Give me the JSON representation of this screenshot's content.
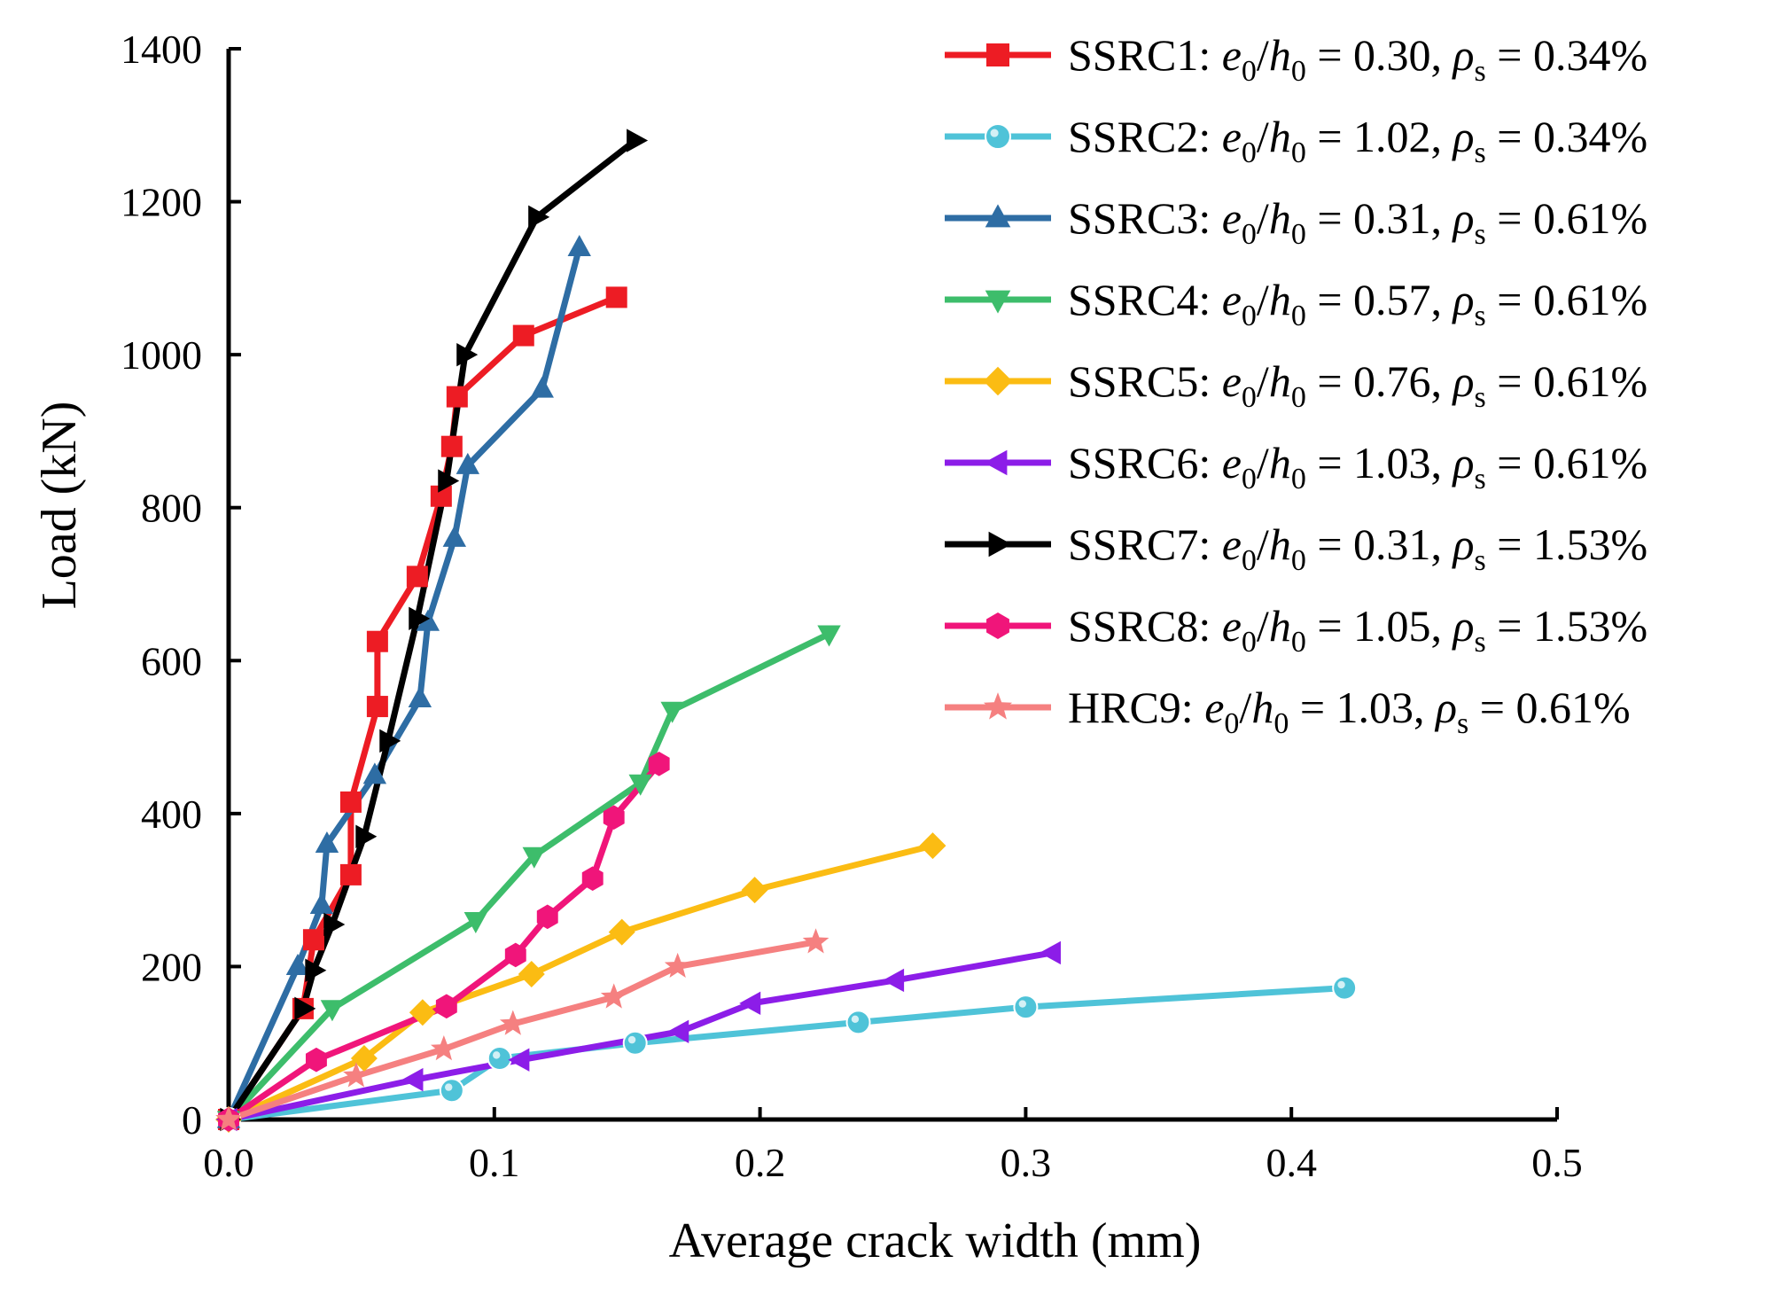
{
  "chart_data": {
    "type": "line",
    "xlabel": "Average crack width (mm)",
    "ylabel": "Load (kN)",
    "xlim": [
      0,
      0.5
    ],
    "ylim": [
      0,
      1400
    ],
    "xticks": [
      0,
      0.1,
      0.2,
      0.3,
      0.4,
      0.5
    ],
    "xtick_labels": [
      "0.0",
      "0.1",
      "0.2",
      "0.3",
      "0.4",
      "0.5"
    ],
    "yticks": [
      0,
      200,
      400,
      600,
      800,
      1000,
      1200,
      1400
    ],
    "ytick_labels": [
      "0",
      "200",
      "400",
      "600",
      "800",
      "1000",
      "1200",
      "1400"
    ],
    "legend_position": "top-right",
    "series": [
      {
        "name": "SSRC1",
        "e0_h0": "0.30",
        "rho_s": "0.34%",
        "color": "#ed1c24",
        "marker": "square",
        "points": [
          [
            0,
            0
          ],
          [
            0.028,
            145
          ],
          [
            0.032,
            235
          ],
          [
            0.046,
            320
          ],
          [
            0.046,
            415
          ],
          [
            0.056,
            540
          ],
          [
            0.056,
            625
          ],
          [
            0.071,
            710
          ],
          [
            0.08,
            815
          ],
          [
            0.084,
            880
          ],
          [
            0.086,
            945
          ],
          [
            0.111,
            1025
          ],
          [
            0.146,
            1075
          ]
        ]
      },
      {
        "name": "SSRC2",
        "e0_h0": "1.02",
        "rho_s": "0.34%",
        "color": "#4fc3d8",
        "marker": "circle",
        "points": [
          [
            0,
            0
          ],
          [
            0.084,
            38
          ],
          [
            0.102,
            80
          ],
          [
            0.153,
            100
          ],
          [
            0.237,
            127
          ],
          [
            0.3,
            147
          ],
          [
            0.42,
            172
          ]
        ]
      },
      {
        "name": "SSRC3",
        "e0_h0": "0.31",
        "rho_s": "0.61%",
        "color": "#2e6da4",
        "marker": "triangle-up",
        "points": [
          [
            0,
            0
          ],
          [
            0.026,
            200
          ],
          [
            0.035,
            280
          ],
          [
            0.037,
            360
          ],
          [
            0.055,
            450
          ],
          [
            0.072,
            550
          ],
          [
            0.075,
            650
          ],
          [
            0.085,
            760
          ],
          [
            0.09,
            855
          ],
          [
            0.118,
            955
          ],
          [
            0.132,
            1140
          ]
        ]
      },
      {
        "name": "SSRC4",
        "e0_h0": "0.57",
        "rho_s": "0.61%",
        "color": "#3dbd6b",
        "marker": "triangle-down",
        "points": [
          [
            0,
            0
          ],
          [
            0.039,
            145
          ],
          [
            0.093,
            260
          ],
          [
            0.115,
            345
          ],
          [
            0.155,
            440
          ],
          [
            0.167,
            535
          ],
          [
            0.226,
            635
          ]
        ]
      },
      {
        "name": "SSRC5",
        "e0_h0": "0.76",
        "rho_s": "0.61%",
        "color": "#fbbc13",
        "marker": "diamond",
        "points": [
          [
            0,
            0
          ],
          [
            0.051,
            80
          ],
          [
            0.073,
            140
          ],
          [
            0.114,
            190
          ],
          [
            0.148,
            245
          ],
          [
            0.198,
            300
          ],
          [
            0.265,
            358
          ]
        ]
      },
      {
        "name": "SSRC6",
        "e0_h0": "1.03",
        "rho_s": "0.61%",
        "color": "#8c1de8",
        "marker": "triangle-left",
        "points": [
          [
            0,
            0
          ],
          [
            0.07,
            52
          ],
          [
            0.11,
            78
          ],
          [
            0.17,
            115
          ],
          [
            0.197,
            152
          ],
          [
            0.251,
            182
          ],
          [
            0.31,
            218
          ]
        ]
      },
      {
        "name": "SSRC7",
        "e0_h0": "0.31",
        "rho_s": "1.53%",
        "color": "#000000",
        "marker": "triangle-right",
        "points": [
          [
            0,
            0
          ],
          [
            0.028,
            145
          ],
          [
            0.032,
            195
          ],
          [
            0.039,
            255
          ],
          [
            0.051,
            370
          ],
          [
            0.06,
            495
          ],
          [
            0.071,
            655
          ],
          [
            0.082,
            835
          ],
          [
            0.089,
            1000
          ],
          [
            0.116,
            1180
          ],
          [
            0.153,
            1280
          ]
        ]
      },
      {
        "name": "SSRC8",
        "e0_h0": "1.05",
        "rho_s": "1.53%",
        "color": "#f0157a",
        "marker": "hexagon",
        "points": [
          [
            0,
            0
          ],
          [
            0.033,
            78
          ],
          [
            0.082,
            148
          ],
          [
            0.108,
            215
          ],
          [
            0.12,
            265
          ],
          [
            0.137,
            315
          ],
          [
            0.145,
            395
          ],
          [
            0.162,
            465
          ]
        ]
      },
      {
        "name": "HRC9",
        "e0_h0": "1.03",
        "rho_s": "0.61%",
        "color": "#f58080",
        "marker": "star",
        "points": [
          [
            0,
            0
          ],
          [
            0.048,
            57
          ],
          [
            0.081,
            92
          ],
          [
            0.107,
            125
          ],
          [
            0.145,
            160
          ],
          [
            0.169,
            200
          ],
          [
            0.221,
            232
          ]
        ]
      }
    ]
  },
  "legend_labels": {
    "e_symbol": "e",
    "h_symbol": "h",
    "zero_subscript": "0",
    "rho_symbol": "ρ",
    "s_subscript": "s",
    "slash": "/",
    "equals": " = ",
    "comma": ", ",
    "colon": ": "
  }
}
